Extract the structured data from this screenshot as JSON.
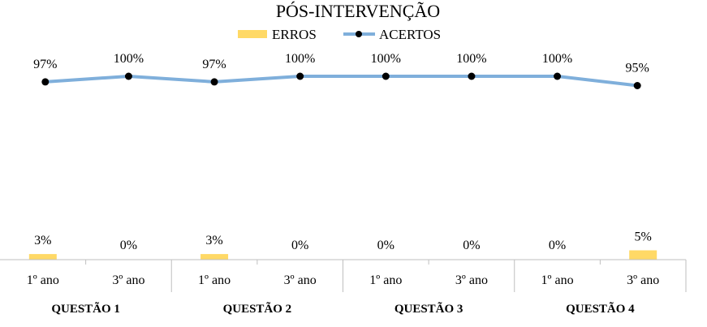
{
  "chart_data": {
    "type": "bar",
    "title": "PÓS-INTERVENÇÃO",
    "xlabel": "",
    "ylabel": "",
    "ylim": [
      0,
      100
    ],
    "grid": false,
    "legend": "top-center",
    "groups": [
      "QUESTÃO 1",
      "QUESTÃO 2",
      "QUESTÃO 3",
      "QUESTÃO 4"
    ],
    "categories": [
      "1º ano",
      "3º ano",
      "1º ano",
      "3º ano",
      "1º ano",
      "3º ano",
      "1º ano",
      "3º ano"
    ],
    "series": [
      {
        "name": "ERROS",
        "type": "bar",
        "color": "#FFD966",
        "values": [
          3,
          0,
          3,
          0,
          0,
          0,
          0,
          5
        ],
        "labels": [
          "3%",
          "0%",
          "3%",
          "0%",
          "0%",
          "0%",
          "0%",
          "5%"
        ]
      },
      {
        "name": "ACERTOS",
        "type": "line",
        "color": "#7FAFDB",
        "marker_color": "#000000",
        "values": [
          97,
          100,
          97,
          100,
          100,
          100,
          100,
          95
        ],
        "labels": [
          "97%",
          "100%",
          "97%",
          "100%",
          "100%",
          "100%",
          "100%",
          "95%"
        ]
      }
    ]
  }
}
